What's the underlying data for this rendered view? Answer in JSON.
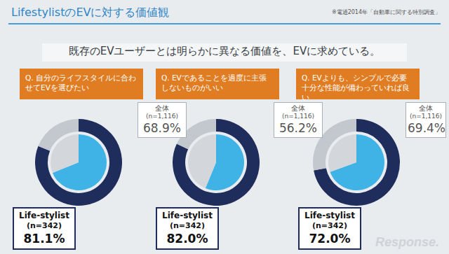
{
  "header": {
    "title": "LifestylistのEVに対する価値観",
    "source": "※電通2014年「自動車に関する特別調査」",
    "subtitle": "既存のEVユーザーとは明らかに異なる価値を、EVに求めている。"
  },
  "chart_data": [
    {
      "type": "donut",
      "title": "Q. 自分のライフスタイルに合わせてEVを選びたい",
      "ylim": [
        0,
        100
      ],
      "data_labels": true,
      "series": [
        {
          "name": "全体",
          "sample": "(n=1,116)",
          "values": [
            68.9
          ],
          "value_labels": [
            "68.9%"
          ],
          "color": "#3fb2e6"
        },
        {
          "name": "Life-stylist",
          "sample": "(n=342)",
          "values": [
            81.1
          ],
          "value_labels": [
            "81.1%"
          ],
          "color": "#1f2d5c"
        }
      ]
    },
    {
      "type": "donut",
      "title": "Q. EVであることを過度に主張しないものがいい",
      "ylim": [
        0,
        100
      ],
      "data_labels": true,
      "series": [
        {
          "name": "全体",
          "sample": "(n=1,116)",
          "values": [
            56.2
          ],
          "value_labels": [
            "56.2%"
          ],
          "color": "#3fb2e6"
        },
        {
          "name": "Life-stylist",
          "sample": "(n=342)",
          "values": [
            82.0
          ],
          "value_labels": [
            "82.0%"
          ],
          "color": "#1f2d5c"
        }
      ]
    },
    {
      "type": "donut",
      "title": "Q. EVよりも、シンプルで必要十分な性能が備わっていれば良い",
      "ylim": [
        0,
        100
      ],
      "data_labels": true,
      "series": [
        {
          "name": "全体",
          "sample": "(n=1,116)",
          "values": [
            69.4
          ],
          "value_labels": [
            "69.4%"
          ],
          "color": "#3fb2e6"
        },
        {
          "name": "Life-stylist",
          "sample": "(n=342)",
          "values": [
            72.0
          ],
          "value_labels": [
            "72.0%"
          ],
          "color": "#1f2d5c"
        }
      ]
    }
  ],
  "watermark": "Response."
}
